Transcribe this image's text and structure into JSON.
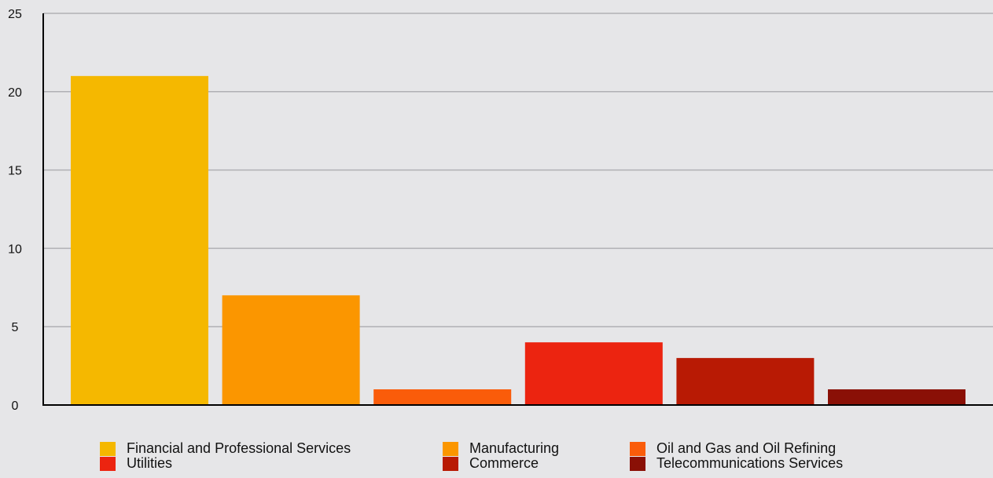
{
  "chart_data": {
    "type": "bar",
    "title": "",
    "xlabel": "",
    "ylabel": "",
    "ylim": [
      0,
      25
    ],
    "yticks": [
      0,
      5,
      10,
      15,
      20,
      25
    ],
    "grid": true,
    "legend_position": "bottom",
    "categories": [
      "Financial and Professional Services",
      "Manufacturing",
      "Oil and Gas and Oil Refining",
      "Utilities",
      "Commerce",
      "Telecommunications Services"
    ],
    "values": [
      21,
      7,
      1,
      4,
      3,
      1
    ],
    "colors": [
      "#f5b800",
      "#fb9600",
      "#fa5c0a",
      "#ec2410",
      "#b81a04",
      "#8a1006"
    ]
  },
  "colors": {
    "background": "#e6e6e8",
    "gridline": "#b0b0b4",
    "axis": "#000000"
  }
}
